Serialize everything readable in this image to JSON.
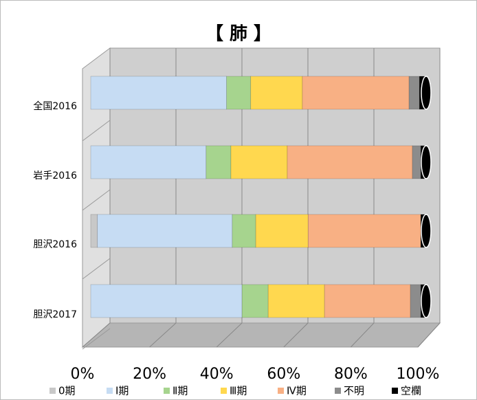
{
  "chart_data": {
    "type": "stacked_bar_3d",
    "title": "【 肺 】",
    "categories": [
      "全国2016",
      "岩手2016",
      "胆沢2016",
      "胆沢2017"
    ],
    "series": [
      {
        "name": "0期",
        "color": "#c8c8c8",
        "values": [
          0,
          0,
          2.0,
          0
        ]
      },
      {
        "name": "Ⅰ期",
        "color": "#c6dcf3",
        "values": [
          40.5,
          34.4,
          40.2,
          45.1
        ]
      },
      {
        "name": "Ⅱ期",
        "color": "#a6d48e",
        "values": [
          7.2,
          7.4,
          7.0,
          7.8
        ]
      },
      {
        "name": "Ⅲ期",
        "color": "#ffd84f",
        "values": [
          15.4,
          16.8,
          15.6,
          16.8
        ]
      },
      {
        "name": "Ⅳ期",
        "color": "#f8b084",
        "values": [
          31.8,
          37.3,
          33.6,
          25.6
        ]
      },
      {
        "name": "不明",
        "color": "#8c8c8c",
        "values": [
          3.1,
          2.5,
          0,
          3.1
        ]
      },
      {
        "name": "空欄",
        "color": "#000000",
        "values": [
          2.0,
          1.6,
          1.6,
          1.6
        ]
      }
    ],
    "xlim": [
      0,
      100
    ],
    "xticks": [
      {
        "value": 0,
        "label": "0%"
      },
      {
        "value": 20,
        "label": "20%"
      },
      {
        "value": 40,
        "label": "40%"
      },
      {
        "value": 60,
        "label": "60%"
      },
      {
        "value": 80,
        "label": "80%"
      },
      {
        "value": 100,
        "label": "100%"
      }
    ],
    "grid": true
  }
}
